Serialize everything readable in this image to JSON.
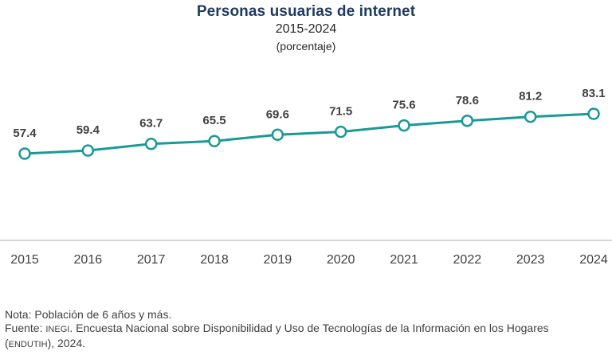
{
  "chart_data": {
    "type": "line",
    "title": "Personas usuarias de internet",
    "subtitle": "2015-2024",
    "units": "(porcentaje)",
    "categories": [
      "2015",
      "2016",
      "2017",
      "2018",
      "2019",
      "2020",
      "2021",
      "2022",
      "2023",
      "2024"
    ],
    "values": [
      57.4,
      59.4,
      63.7,
      65.5,
      69.6,
      71.5,
      75.6,
      78.6,
      81.2,
      83.1
    ],
    "value_labels": [
      "57.4",
      "59.4",
      "63.7",
      "65.5",
      "69.6",
      "71.5",
      "75.6",
      "78.6",
      "81.2",
      "83.1"
    ],
    "line_color": "#1a9a96",
    "marker_fill": "#ffffff",
    "axis_color": "#bfbfbf",
    "grid": false,
    "legend": "none"
  },
  "notes": {
    "nota": "Nota: Población de 6 años y más.",
    "fuente_prefix": "Fuente: ",
    "fuente_org": "INEGI",
    "fuente_text": ". Encuesta Nacional sobre Disponibilidad y Uso de Tecnologías de la Información en los Hogares",
    "fuente_paren_open": "(",
    "fuente_survey": "ENDUTIH",
    "fuente_end": "), 2024."
  }
}
